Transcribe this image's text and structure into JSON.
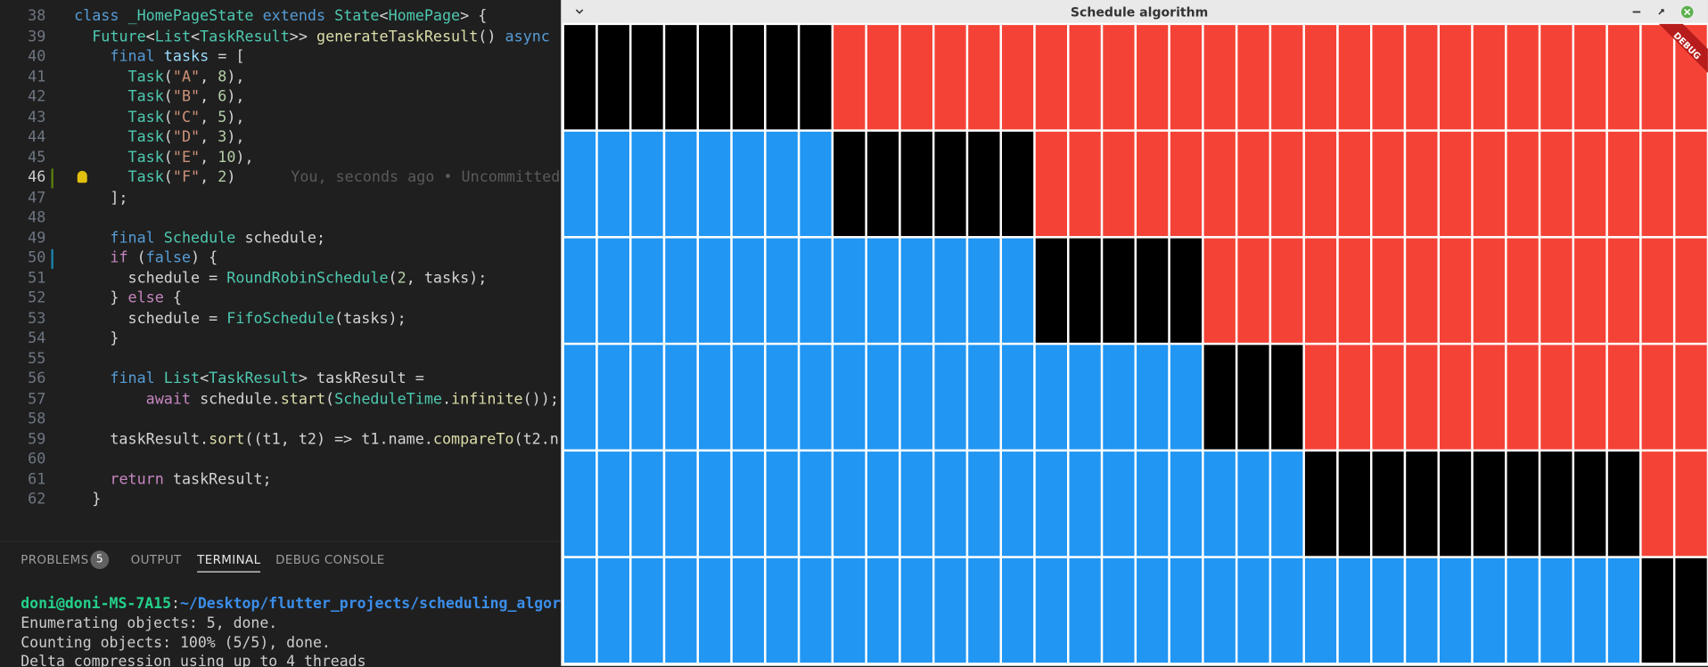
{
  "editor": {
    "lines": [
      {
        "number": 38,
        "tokens": [
          [
            "class",
            "kw"
          ],
          [
            " ",
            "p"
          ],
          [
            "_HomePageState",
            "ty"
          ],
          [
            " ",
            "p"
          ],
          [
            "extends",
            "kw"
          ],
          [
            " ",
            "p"
          ],
          [
            "State",
            "ty"
          ],
          [
            "<",
            "p"
          ],
          [
            "HomePage",
            "ty"
          ],
          [
            "> {",
            "p"
          ]
        ]
      },
      {
        "number": 39,
        "tokens": [
          [
            "  ",
            "p"
          ],
          [
            "Future",
            "ty"
          ],
          [
            "<",
            "p"
          ],
          [
            "List",
            "ty"
          ],
          [
            "<",
            "p"
          ],
          [
            "TaskResult",
            "ty"
          ],
          [
            ">> ",
            "p"
          ],
          [
            "generateTaskResult",
            "fn"
          ],
          [
            "() ",
            "p"
          ],
          [
            "async",
            "kw"
          ]
        ]
      },
      {
        "number": 40,
        "tokens": [
          [
            "    ",
            "p"
          ],
          [
            "final",
            "kw"
          ],
          [
            " ",
            "p"
          ],
          [
            "tasks",
            "var"
          ],
          [
            " = [",
            "p"
          ]
        ]
      },
      {
        "number": 41,
        "tokens": [
          [
            "      ",
            "p"
          ],
          [
            "Task",
            "ty"
          ],
          [
            "(",
            "p"
          ],
          [
            "\"A\"",
            "str"
          ],
          [
            ", ",
            "p"
          ],
          [
            "8",
            "num"
          ],
          [
            "),",
            "p"
          ]
        ]
      },
      {
        "number": 42,
        "tokens": [
          [
            "      ",
            "p"
          ],
          [
            "Task",
            "ty"
          ],
          [
            "(",
            "p"
          ],
          [
            "\"B\"",
            "str"
          ],
          [
            ", ",
            "p"
          ],
          [
            "6",
            "num"
          ],
          [
            "),",
            "p"
          ]
        ]
      },
      {
        "number": 43,
        "tokens": [
          [
            "      ",
            "p"
          ],
          [
            "Task",
            "ty"
          ],
          [
            "(",
            "p"
          ],
          [
            "\"C\"",
            "str"
          ],
          [
            ", ",
            "p"
          ],
          [
            "5",
            "num"
          ],
          [
            "),",
            "p"
          ]
        ]
      },
      {
        "number": 44,
        "tokens": [
          [
            "      ",
            "p"
          ],
          [
            "Task",
            "ty"
          ],
          [
            "(",
            "p"
          ],
          [
            "\"D\"",
            "str"
          ],
          [
            ", ",
            "p"
          ],
          [
            "3",
            "num"
          ],
          [
            "),",
            "p"
          ]
        ]
      },
      {
        "number": 45,
        "tokens": [
          [
            "      ",
            "p"
          ],
          [
            "Task",
            "ty"
          ],
          [
            "(",
            "p"
          ],
          [
            "\"E\"",
            "str"
          ],
          [
            ", ",
            "p"
          ],
          [
            "10",
            "num"
          ],
          [
            "),",
            "p"
          ]
        ]
      },
      {
        "number": 46,
        "tokens": [
          [
            "      ",
            "p"
          ],
          [
            "Task",
            "ty"
          ],
          [
            "(",
            "p"
          ],
          [
            "\"F\"",
            "str"
          ],
          [
            ", ",
            "p"
          ],
          [
            "2",
            "num"
          ],
          [
            ")",
            "p"
          ]
        ],
        "blame": "You, seconds ago • Uncommitted"
      },
      {
        "number": 47,
        "tokens": [
          [
            "    ];",
            "p"
          ]
        ]
      },
      {
        "number": 48,
        "tokens": []
      },
      {
        "number": 49,
        "tokens": [
          [
            "    ",
            "p"
          ],
          [
            "final",
            "kw"
          ],
          [
            " ",
            "p"
          ],
          [
            "Schedule",
            "ty"
          ],
          [
            " schedule;",
            "p"
          ]
        ]
      },
      {
        "number": 50,
        "tokens": [
          [
            "    ",
            "p"
          ],
          [
            "if",
            "ctl"
          ],
          [
            " (",
            "p"
          ],
          [
            "false",
            "kw"
          ],
          [
            ") {",
            "p"
          ]
        ]
      },
      {
        "number": 51,
        "tokens": [
          [
            "      schedule = ",
            "p"
          ],
          [
            "RoundRobinSchedule",
            "ty"
          ],
          [
            "(",
            "p"
          ],
          [
            "2",
            "num"
          ],
          [
            ", tasks);",
            "p"
          ]
        ]
      },
      {
        "number": 52,
        "tokens": [
          [
            "    } ",
            "p"
          ],
          [
            "else",
            "ctl"
          ],
          [
            " {",
            "p"
          ]
        ]
      },
      {
        "number": 53,
        "tokens": [
          [
            "      schedule = ",
            "p"
          ],
          [
            "FifoSchedule",
            "ty"
          ],
          [
            "(tasks);",
            "p"
          ]
        ]
      },
      {
        "number": 54,
        "tokens": [
          [
            "    }",
            "p"
          ]
        ]
      },
      {
        "number": 55,
        "tokens": []
      },
      {
        "number": 56,
        "tokens": [
          [
            "    ",
            "p"
          ],
          [
            "final",
            "kw"
          ],
          [
            " ",
            "p"
          ],
          [
            "List",
            "ty"
          ],
          [
            "<",
            "p"
          ],
          [
            "TaskResult",
            "ty"
          ],
          [
            "> taskResult =",
            "p"
          ]
        ]
      },
      {
        "number": 57,
        "tokens": [
          [
            "        ",
            "p"
          ],
          [
            "await",
            "ctl"
          ],
          [
            " schedule.",
            "p"
          ],
          [
            "start",
            "fn"
          ],
          [
            "(",
            "p"
          ],
          [
            "ScheduleTime",
            "ty"
          ],
          [
            ".",
            "p"
          ],
          [
            "infinite",
            "fn"
          ],
          [
            "());",
            "p"
          ]
        ]
      },
      {
        "number": 58,
        "tokens": []
      },
      {
        "number": 59,
        "tokens": [
          [
            "    taskResult.",
            "p"
          ],
          [
            "sort",
            "fn"
          ],
          [
            "((t1, t2) => t1.name.",
            "p"
          ],
          [
            "compareTo",
            "fn"
          ],
          [
            "(t2.n",
            "p"
          ]
        ]
      },
      {
        "number": 60,
        "tokens": []
      },
      {
        "number": 61,
        "tokens": [
          [
            "    ",
            "p"
          ],
          [
            "return",
            "ctl"
          ],
          [
            " taskResult;",
            "p"
          ]
        ]
      },
      {
        "number": 62,
        "tokens": [
          [
            "  }",
            "p"
          ]
        ]
      }
    ]
  },
  "panel": {
    "tabs": [
      "PROBLEMS",
      "OUTPUT",
      "TERMINAL",
      "DEBUG CONSOLE"
    ],
    "problems_count": 5
  },
  "terminal": {
    "user": "doni@doni-MS-7A15",
    "separator": ":",
    "path": "~/Desktop/flutter_projects/scheduling_algor",
    "lines": [
      "Enumerating objects: 5, done.",
      "Counting objects: 100% (5/5), done.",
      "Delta compression using up to 4 threads"
    ]
  },
  "window": {
    "title": "Schedule algorithm",
    "banner": "DEBUG"
  },
  "schedule": {
    "columns": 34,
    "colors": {
      "waiting": "#2196f3",
      "running": "#000000",
      "done": "#f44336"
    },
    "tasks": [
      {
        "start": 0,
        "burst": 8
      },
      {
        "start": 8,
        "burst": 6
      },
      {
        "start": 14,
        "burst": 5
      },
      {
        "start": 19,
        "burst": 3
      },
      {
        "start": 22,
        "burst": 10
      },
      {
        "start": 32,
        "burst": 2
      }
    ]
  }
}
